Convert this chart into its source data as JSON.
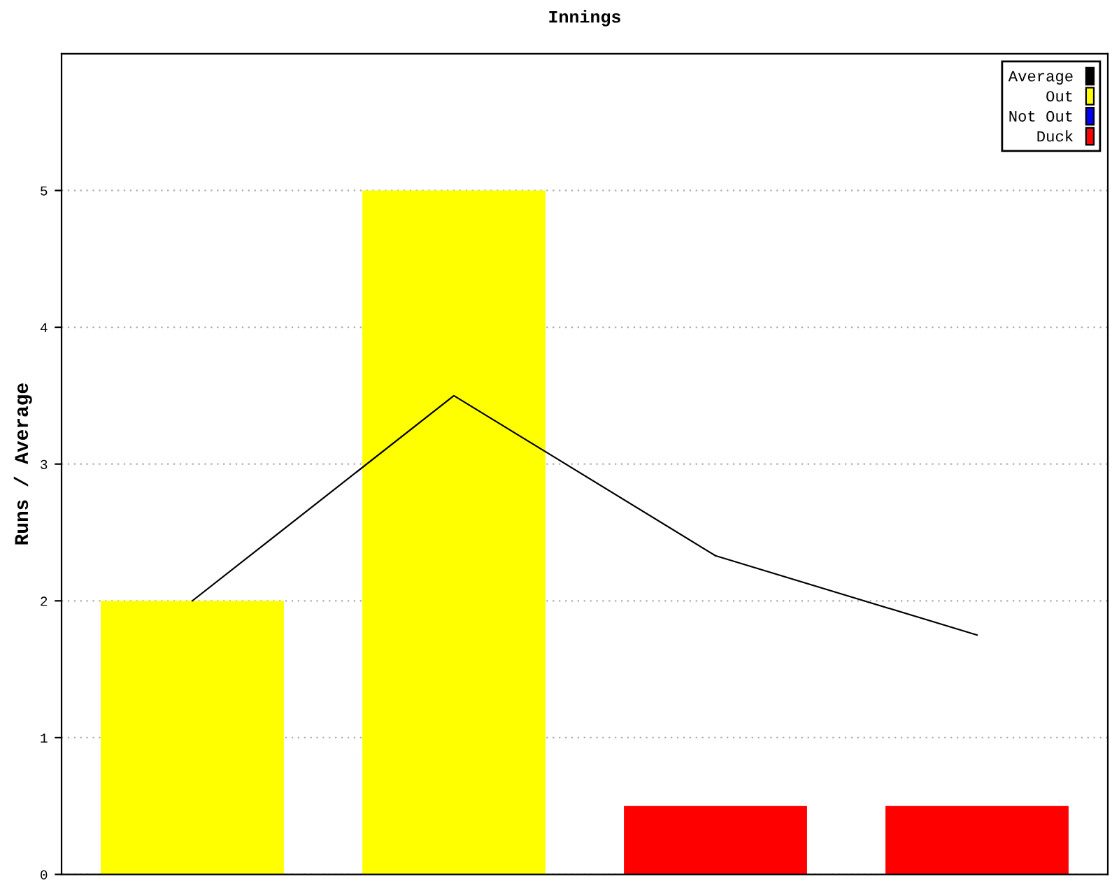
{
  "chart_data": {
    "type": "bar",
    "title": "Innings",
    "ylabel": "Runs / Average",
    "categories": [
      null,
      null,
      null,
      null
    ],
    "series": [
      {
        "name": "Average",
        "type": "line",
        "color": "#000000",
        "values": [
          2,
          3.5,
          2.33,
          1.75
        ]
      },
      {
        "name": "Out",
        "color": "#ffff00",
        "values": [
          2,
          5,
          null,
          null
        ]
      },
      {
        "name": "Not Out",
        "color": "#0000ff",
        "values": [
          null,
          null,
          null,
          null
        ]
      },
      {
        "name": "Duck",
        "color": "#ff0000",
        "values": [
          null,
          null,
          0.5,
          0.5
        ]
      }
    ],
    "ylim": [
      0,
      6
    ],
    "yticks": [
      0,
      1,
      2,
      3,
      4,
      5
    ],
    "grid": "y",
    "legend": "top right",
    "tick_labels": "y",
    "line_style": "solid",
    "marker": "none"
  }
}
